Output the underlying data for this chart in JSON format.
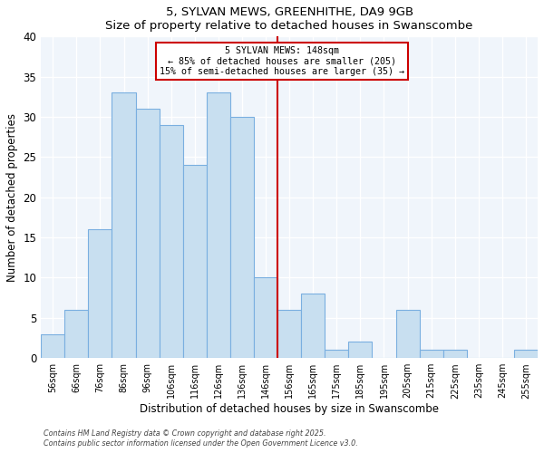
{
  "title": "5, SYLVAN MEWS, GREENHITHE, DA9 9GB",
  "subtitle": "Size of property relative to detached houses in Swanscombe",
  "xlabel": "Distribution of detached houses by size in Swanscombe",
  "ylabel": "Number of detached properties",
  "bar_labels": [
    "56sqm",
    "66sqm",
    "76sqm",
    "86sqm",
    "96sqm",
    "106sqm",
    "116sqm",
    "126sqm",
    "136sqm",
    "146sqm",
    "156sqm",
    "165sqm",
    "175sqm",
    "185sqm",
    "195sqm",
    "205sqm",
    "215sqm",
    "225sqm",
    "235sqm",
    "245sqm",
    "255sqm"
  ],
  "bar_values": [
    3,
    6,
    16,
    33,
    31,
    29,
    24,
    33,
    30,
    10,
    6,
    8,
    1,
    2,
    0,
    6,
    1,
    1,
    0,
    0,
    1
  ],
  "bar_color": "#c8dff0",
  "bar_edge_color": "#7aafe0",
  "vline_x": 9.5,
  "vline_color": "#cc0000",
  "annotation_title": "5 SYLVAN MEWS: 148sqm",
  "annotation_line1": "← 85% of detached houses are smaller (205)",
  "annotation_line2": "15% of semi-detached houses are larger (35) →",
  "annotation_box_color": "#cc0000",
  "ylim": [
    0,
    40
  ],
  "yticks": [
    0,
    5,
    10,
    15,
    20,
    25,
    30,
    35,
    40
  ],
  "background_color": "#ffffff",
  "plot_bg_color": "#f0f5fb",
  "grid_color": "#ffffff",
  "footer1": "Contains HM Land Registry data © Crown copyright and database right 2025.",
  "footer2": "Contains public sector information licensed under the Open Government Licence v3.0."
}
